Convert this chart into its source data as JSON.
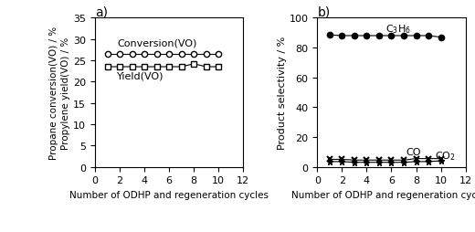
{
  "cycles": [
    1,
    2,
    3,
    4,
    5,
    6,
    7,
    8,
    9,
    10
  ],
  "conversion": [
    26.5,
    26.5,
    26.5,
    26.5,
    26.5,
    26.5,
    26.5,
    26.5,
    26.5,
    26.5
  ],
  "yield_vo": [
    23.5,
    23.5,
    23.5,
    23.5,
    23.5,
    23.5,
    23.5,
    24.2,
    23.5,
    23.5
  ],
  "c3h6_sel": [
    88.5,
    88.0,
    88.0,
    88.0,
    88.0,
    88.0,
    88.0,
    88.0,
    88.0,
    87.0
  ],
  "co_sel": [
    5.0,
    5.0,
    4.5,
    4.5,
    4.5,
    4.5,
    4.5,
    5.5,
    5.5,
    5.5
  ],
  "co2_sel": [
    3.5,
    3.5,
    3.0,
    3.0,
    3.0,
    3.0,
    3.0,
    3.5,
    3.5,
    4.0
  ],
  "subplot_a_title": "a)",
  "subplot_b_title": "b)",
  "ylabel_a": "Propane conversion(VO) / %\nPropylene yield(VO) / %",
  "ylabel_b": "Product selectivity / %",
  "xlabel": "Number of ODHP and regeneration cycles",
  "ylim_a": [
    0,
    35
  ],
  "yticks_a": [
    0,
    5,
    10,
    15,
    20,
    25,
    30,
    35
  ],
  "ylim_b": [
    0,
    100
  ],
  "yticks_b": [
    0,
    20,
    40,
    60,
    80,
    100
  ],
  "xlim": [
    0,
    12
  ],
  "xticks": [
    0,
    2,
    4,
    6,
    8,
    10,
    12
  ],
  "label_conversion": "Conversion(VO)",
  "label_yield": "Yield(VO)",
  "label_c3h6": "C$_3$H$_6$",
  "label_co": "CO",
  "label_co2": "CO$_2$",
  "font_size_ticks": 8,
  "font_size_label": 8,
  "font_size_title": 10,
  "font_size_annot": 8
}
